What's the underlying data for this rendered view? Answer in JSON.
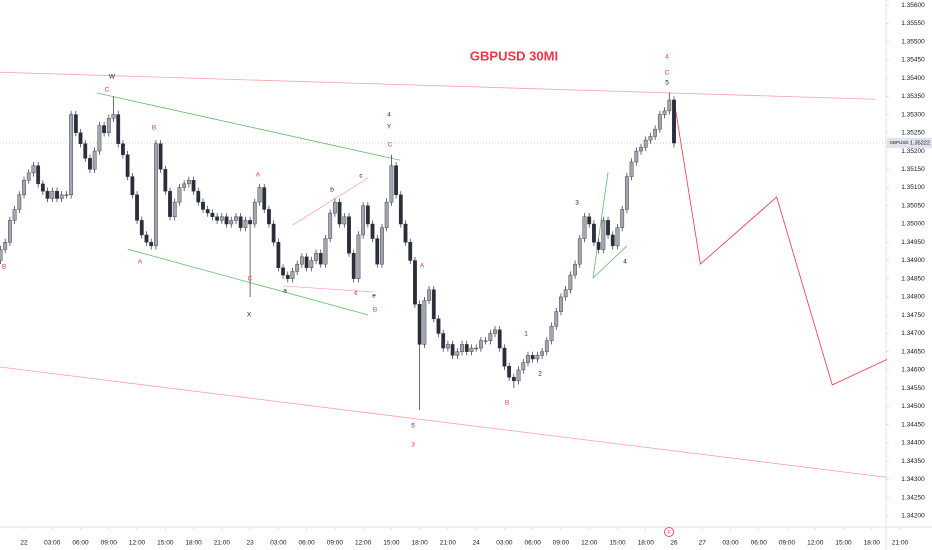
{
  "chart_data": {
    "type": "candlestick",
    "title": "GBPUSD 30MI",
    "symbol": "GBPUSD",
    "up_color": "#a3a6ae",
    "down_color": "#2a2e39",
    "grid": false,
    "x": [
      -2.5,
      -2,
      -1.5,
      -1,
      -0.5,
      0,
      0.5,
      1,
      1.5,
      2,
      2.5,
      3,
      3.5,
      4,
      4.5,
      5,
      5.5,
      6,
      6.5,
      7,
      7.5,
      8,
      8.5,
      9,
      9.5,
      10,
      10.5,
      11,
      11.5,
      12,
      12.5,
      13,
      13.5,
      14,
      14.5,
      15,
      15.5,
      16,
      16.5,
      17,
      17.5,
      18,
      18.5,
      19,
      19.5,
      20,
      20.5,
      21,
      21.5,
      22,
      22.5,
      23,
      23.5,
      24,
      24.5,
      25,
      25.5,
      26,
      26.5,
      27,
      27.5,
      28,
      28.5,
      29,
      29.5,
      30,
      30.5,
      31,
      31.5,
      32,
      32.5,
      33,
      33.5,
      34,
      34.5,
      35,
      35.5,
      36,
      36.5,
      37,
      37.5,
      38,
      38.5,
      39,
      39.5,
      40,
      40.5,
      41,
      41.5,
      42,
      42.5,
      43,
      43.5,
      44,
      44.5,
      45,
      45.5,
      46,
      46.5,
      47,
      47.5,
      48,
      48.5,
      49,
      49.5,
      50,
      50.5,
      51,
      51.5,
      52,
      52.5,
      53,
      53.5,
      54,
      54.5,
      55,
      55.5,
      56,
      56.5,
      57,
      57.5,
      58,
      58.5,
      59,
      59.5,
      60,
      60.5,
      61,
      61.5,
      62,
      62.5,
      63,
      63.5,
      64,
      64.5,
      65,
      65.5,
      66,
      66.5,
      67,
      67.5,
      68,
      68.5,
      69
    ],
    "open": [
      1.349,
      1.3493,
      1.3495,
      1.3501,
      1.3504,
      1.3508,
      1.3512,
      1.3514,
      1.3516,
      1.3511,
      1.3509,
      1.3507,
      1.3509,
      1.3507,
      1.3508,
      1.3508,
      1.353,
      1.3525,
      1.3522,
      1.3518,
      1.3515,
      1.352,
      1.3527,
      1.3525,
      1.3529,
      1.353,
      1.3522,
      1.3519,
      1.3513,
      1.3508,
      1.3501,
      1.3497,
      1.3495,
      1.3494,
      1.3522,
      1.3515,
      1.3509,
      1.3502,
      1.3506,
      1.351,
      1.3511,
      1.3512,
      1.3509,
      1.3506,
      1.3504,
      1.3503,
      1.3502,
      1.3501,
      1.3502,
      1.35,
      1.3501,
      1.3502,
      1.3499,
      1.3501,
      1.35,
      1.3506,
      1.351,
      1.3504,
      1.35,
      1.3495,
      1.3488,
      1.3486,
      1.3485,
      1.3487,
      1.3489,
      1.3491,
      1.3488,
      1.349,
      1.3492,
      1.3489,
      1.3496,
      1.3503,
      1.3506,
      1.35,
      1.3502,
      1.3492,
      1.3485,
      1.3497,
      1.3505,
      1.35,
      1.3496,
      1.3489,
      1.3499,
      1.3506,
      1.3516,
      1.3508,
      1.35,
      1.3495,
      1.349,
      1.3478,
      1.3467,
      1.3479,
      1.3482,
      1.3474,
      1.347,
      1.3466,
      1.3467,
      1.3464,
      1.3465,
      1.3467,
      1.3465,
      1.3466,
      1.3466,
      1.3468,
      1.3468,
      1.347,
      1.3471,
      1.3466,
      1.3461,
      1.3458,
      1.3457,
      1.346,
      1.3462,
      1.3464,
      1.3463,
      1.3464,
      1.3465,
      1.3468,
      1.3472,
      1.3476,
      1.348,
      1.3482,
      1.3486,
      1.3489,
      1.3496,
      1.3502,
      1.35,
      1.3495,
      1.3493,
      1.3501,
      1.3497,
      1.3494,
      1.3499,
      1.3504,
      1.3513,
      1.3517,
      1.352,
      1.3521,
      1.3523,
      1.3524,
      1.3526,
      1.353,
      1.3531,
      1.3534
    ],
    "high": [
      1.3494,
      1.3496,
      1.3502,
      1.3505,
      1.3509,
      1.3513,
      1.3515,
      1.3517,
      1.3517,
      1.3512,
      1.351,
      1.351,
      1.351,
      1.3509,
      1.3509,
      1.3531,
      1.3531,
      1.3526,
      1.3523,
      1.3519,
      1.3521,
      1.3528,
      1.3528,
      1.353,
      1.3535,
      1.3531,
      1.3523,
      1.352,
      1.3514,
      1.3509,
      1.3502,
      1.3498,
      1.3496,
      1.3523,
      1.3523,
      1.3516,
      1.351,
      1.3507,
      1.3511,
      1.3512,
      1.3513,
      1.3513,
      1.351,
      1.3507,
      1.3505,
      1.3504,
      1.3503,
      1.3503,
      1.3503,
      1.3502,
      1.3503,
      1.3503,
      1.3502,
      1.3502,
      1.3507,
      1.3511,
      1.3511,
      1.3505,
      1.3501,
      1.3496,
      1.3489,
      1.3487,
      1.3488,
      1.349,
      1.3492,
      1.3492,
      1.3491,
      1.3493,
      1.3493,
      1.3497,
      1.3504,
      1.3507,
      1.3507,
      1.3503,
      1.3503,
      1.3493,
      1.3498,
      1.3506,
      1.3506,
      1.3501,
      1.3497,
      1.35,
      1.3507,
      1.3519,
      1.3517,
      1.3509,
      1.3501,
      1.3496,
      1.3491,
      1.3479,
      1.348,
      1.3483,
      1.3483,
      1.3475,
      1.3471,
      1.3468,
      1.3468,
      1.3466,
      1.3468,
      1.3468,
      1.3467,
      1.3467,
      1.3469,
      1.3469,
      1.3471,
      1.3472,
      1.3472,
      1.3467,
      1.3462,
      1.3459,
      1.3461,
      1.3463,
      1.3465,
      1.3465,
      1.3465,
      1.3466,
      1.3469,
      1.3473,
      1.3477,
      1.3481,
      1.3483,
      1.3487,
      1.349,
      1.3497,
      1.3503,
      1.3503,
      1.3501,
      1.3496,
      1.3502,
      1.3502,
      1.3498,
      1.35,
      1.3505,
      1.3514,
      1.3518,
      1.3521,
      1.3522,
      1.3524,
      1.3525,
      1.3527,
      1.3531,
      1.3532,
      1.3536,
      1.3535
    ],
    "low": [
      1.3489,
      1.3492,
      1.3494,
      1.35,
      1.3503,
      1.3507,
      1.3511,
      1.3513,
      1.351,
      1.3508,
      1.3506,
      1.3506,
      1.3506,
      1.3506,
      1.3507,
      1.3507,
      1.3524,
      1.3521,
      1.3517,
      1.3514,
      1.3514,
      1.3519,
      1.3524,
      1.3524,
      1.3528,
      1.3521,
      1.3518,
      1.3512,
      1.3507,
      1.35,
      1.3496,
      1.3494,
      1.3493,
      1.3493,
      1.3514,
      1.3508,
      1.3501,
      1.3501,
      1.3505,
      1.3509,
      1.351,
      1.3508,
      1.3505,
      1.3503,
      1.3502,
      1.3501,
      1.35,
      1.35,
      1.3499,
      1.3499,
      1.35,
      1.3498,
      1.3498,
      1.348,
      1.3499,
      1.3505,
      1.3503,
      1.3499,
      1.3494,
      1.3487,
      1.3485,
      1.3484,
      1.3484,
      1.3486,
      1.3488,
      1.3487,
      1.3487,
      1.3489,
      1.3488,
      1.3488,
      1.3495,
      1.3502,
      1.3499,
      1.3499,
      1.3491,
      1.3484,
      1.3484,
      1.3496,
      1.3499,
      1.3495,
      1.3488,
      1.3488,
      1.3498,
      1.3505,
      1.3507,
      1.3499,
      1.3494,
      1.3489,
      1.3477,
      1.3449,
      1.3466,
      1.3478,
      1.3473,
      1.3469,
      1.3465,
      1.3465,
      1.3463,
      1.3463,
      1.3464,
      1.3464,
      1.3464,
      1.3465,
      1.3465,
      1.3467,
      1.3467,
      1.3469,
      1.3465,
      1.346,
      1.3457,
      1.3455,
      1.3456,
      1.3459,
      1.3461,
      1.3462,
      1.3462,
      1.3463,
      1.3464,
      1.3467,
      1.3471,
      1.3475,
      1.3479,
      1.3481,
      1.3485,
      1.3488,
      1.3495,
      1.3499,
      1.3494,
      1.3492,
      1.3492,
      1.3496,
      1.3493,
      1.3493,
      1.3498,
      1.3503,
      1.3512,
      1.3516,
      1.3519,
      1.352,
      1.3522,
      1.3523,
      1.3525,
      1.3529,
      1.353,
      1.3521
    ],
    "close": [
      1.3493,
      1.3495,
      1.3501,
      1.3504,
      1.3508,
      1.3512,
      1.3514,
      1.3516,
      1.3511,
      1.3509,
      1.3507,
      1.3509,
      1.3507,
      1.3508,
      1.3508,
      1.353,
      1.3525,
      1.3522,
      1.3518,
      1.3515,
      1.352,
      1.3527,
      1.3525,
      1.3529,
      1.353,
      1.3522,
      1.3519,
      1.3513,
      1.3508,
      1.3501,
      1.3497,
      1.3495,
      1.3494,
      1.3522,
      1.3515,
      1.3509,
      1.3502,
      1.3506,
      1.351,
      1.3511,
      1.3512,
      1.3509,
      1.3506,
      1.3504,
      1.3503,
      1.3502,
      1.3501,
      1.3502,
      1.35,
      1.3501,
      1.3502,
      1.3499,
      1.3501,
      1.35,
      1.3506,
      1.351,
      1.3504,
      1.35,
      1.3495,
      1.3488,
      1.3486,
      1.3485,
      1.3487,
      1.3489,
      1.3491,
      1.3488,
      1.349,
      1.3492,
      1.3489,
      1.3496,
      1.3503,
      1.3506,
      1.35,
      1.3502,
      1.3492,
      1.3485,
      1.3497,
      1.3505,
      1.35,
      1.3496,
      1.3489,
      1.3499,
      1.3506,
      1.3516,
      1.3508,
      1.35,
      1.3495,
      1.349,
      1.3478,
      1.3467,
      1.3479,
      1.3482,
      1.3474,
      1.347,
      1.3466,
      1.3467,
      1.3464,
      1.3465,
      1.3467,
      1.3465,
      1.3466,
      1.3466,
      1.3468,
      1.3468,
      1.347,
      1.3471,
      1.3466,
      1.3461,
      1.3458,
      1.3457,
      1.346,
      1.3462,
      1.3464,
      1.3463,
      1.3464,
      1.3465,
      1.3468,
      1.3472,
      1.3476,
      1.348,
      1.3482,
      1.3486,
      1.3489,
      1.3496,
      1.3502,
      1.35,
      1.3495,
      1.3493,
      1.3501,
      1.3497,
      1.3494,
      1.3499,
      1.3504,
      1.3513,
      1.3517,
      1.352,
      1.3521,
      1.3523,
      1.3524,
      1.3526,
      1.353,
      1.3531,
      1.3534,
      1.35222
    ],
    "xlim": [
      -2.55,
      96.39
    ],
    "xticks": [
      {
        "value": 0,
        "label": "22"
      },
      {
        "value": 3,
        "label": "03:00"
      },
      {
        "value": 6,
        "label": "06:00"
      },
      {
        "value": 9,
        "label": "09:00"
      },
      {
        "value": 12,
        "label": "12:00"
      },
      {
        "value": 15,
        "label": "15:00"
      },
      {
        "value": 18,
        "label": "18:00"
      },
      {
        "value": 21,
        "label": "21:00"
      },
      {
        "value": 24,
        "label": "23"
      },
      {
        "value": 27,
        "label": "03:00"
      },
      {
        "value": 30,
        "label": "06:00"
      },
      {
        "value": 33,
        "label": "09:00"
      },
      {
        "value": 36,
        "label": "12:00"
      },
      {
        "value": 39,
        "label": "15:00"
      },
      {
        "value": 42,
        "label": "18:00"
      },
      {
        "value": 45,
        "label": "21:00"
      },
      {
        "value": 48,
        "label": "24"
      },
      {
        "value": 51,
        "label": "03:00"
      },
      {
        "value": 54,
        "label": "06:00"
      },
      {
        "value": 57,
        "label": "09:00"
      },
      {
        "value": 60,
        "label": "12:00"
      },
      {
        "value": 63,
        "label": "15:00"
      },
      {
        "value": 66,
        "label": "18:00"
      },
      {
        "value": 69,
        "label": "26"
      },
      {
        "value": 72,
        "label": "27"
      },
      {
        "value": 75,
        "label": "03:00"
      },
      {
        "value": 78,
        "label": "06:00"
      },
      {
        "value": 81,
        "label": "09:00"
      },
      {
        "value": 84,
        "label": "12:00"
      },
      {
        "value": 87,
        "label": "15:00"
      },
      {
        "value": 90,
        "label": "18:00"
      },
      {
        "value": 93,
        "label": "21:00"
      }
    ],
    "ylim": [
      1.34175,
      1.35614
    ],
    "yticks": [
      {
        "value": 1.356,
        "label": "1.35600"
      },
      {
        "value": 1.3555,
        "label": "1.35550"
      },
      {
        "value": 1.355,
        "label": "1.35500"
      },
      {
        "value": 1.3545,
        "label": "1.35450"
      },
      {
        "value": 1.354,
        "label": "1.35400"
      },
      {
        "value": 1.3535,
        "label": "1.35350"
      },
      {
        "value": 1.353,
        "label": "1.35300"
      },
      {
        "value": 1.3525,
        "label": "1.35250"
      },
      {
        "value": 1.352,
        "label": "1.35200"
      },
      {
        "value": 1.3515,
        "label": "1.35150"
      },
      {
        "value": 1.351,
        "label": "1.35100"
      },
      {
        "value": 1.3505,
        "label": "1.35050"
      },
      {
        "value": 1.35,
        "label": "1.35000"
      },
      {
        "value": 1.3495,
        "label": "1.34950"
      },
      {
        "value": 1.349,
        "label": "1.34900"
      },
      {
        "value": 1.3485,
        "label": "1.34850"
      },
      {
        "value": 1.348,
        "label": "1.34800"
      },
      {
        "value": 1.3475,
        "label": "1.34750"
      },
      {
        "value": 1.347,
        "label": "1.34700"
      },
      {
        "value": 1.3465,
        "label": "1.34650"
      },
      {
        "value": 1.346,
        "label": "1.34600"
      },
      {
        "value": 1.3455,
        "label": "1.34550"
      },
      {
        "value": 1.345,
        "label": "1.34500"
      },
      {
        "value": 1.3445,
        "label": "1.34450"
      },
      {
        "value": 1.344,
        "label": "1.34400"
      },
      {
        "value": 1.3435,
        "label": "1.34350"
      },
      {
        "value": 1.343,
        "label": "1.34300"
      },
      {
        "value": 1.3425,
        "label": "1.34250"
      },
      {
        "value": 1.342,
        "label": "1.34200"
      }
    ],
    "trend_lines": [
      {
        "color": "#f7a1a8",
        "x": [
          -2.55,
          90.3
        ],
        "y": [
          1.35416,
          1.35342
        ]
      },
      {
        "color": "#f7a1a8",
        "x": [
          -2.55,
          93.8
        ],
        "y": [
          1.34608,
          1.342985
        ]
      },
      {
        "color": "#66bb6a",
        "x": [
          7.75,
          39.9
        ],
        "y": [
          1.35359,
          1.35175
        ]
      },
      {
        "color": "#66bb6a",
        "x": [
          11.0,
          36.5
        ],
        "y": [
          1.34931,
          1.34751
        ]
      },
      {
        "color": "#66bb6a",
        "x": [
          60.4,
          62.0
        ],
        "y": [
          1.34852,
          1.35142
        ]
      },
      {
        "color": "#66bb6a",
        "x": [
          60.4,
          64.0
        ],
        "y": [
          1.34852,
          1.3494
        ]
      },
      {
        "color": "#f9a8c0",
        "x": [
          28.5,
          36.5
        ],
        "y": [
          1.34997,
          1.35126
        ]
      },
      {
        "color": "#f9a8c0",
        "x": [
          27.5,
          37.0
        ],
        "y": [
          1.3483,
          1.34814
        ]
      },
      {
        "color": "#f23645",
        "x": [
          69,
          71.8,
          79.9,
          85.8,
          93.3,
          93.8
        ],
        "y": [
          1.3534,
          1.3489,
          1.35074,
          1.34559,
          1.34649,
          1.34594
        ]
      }
    ],
    "wave_labels": [
      {
        "text": "B",
        "color": "#f23645"
      },
      {
        "text": "C",
        "color": "#f23645"
      },
      {
        "text": "W",
        "color": "#131722"
      },
      {
        "text": "B",
        "color": "#f23645"
      },
      {
        "text": "A",
        "color": "#f23645"
      },
      {
        "text": "A",
        "color": "#f23645"
      },
      {
        "text": "C",
        "color": "#f23645"
      },
      {
        "text": "X",
        "color": "#131722"
      },
      {
        "text": "4",
        "color": "#1e3a8a"
      },
      {
        "text": "Y",
        "color": "#1e3a8a"
      },
      {
        "text": "C",
        "color": "#f23645"
      },
      {
        "text": "B",
        "color": "#f23645"
      },
      {
        "text": "A",
        "color": "#f23645"
      },
      {
        "text": "5",
        "color": "#1e3a8a"
      },
      {
        "text": "3",
        "color": "#f23645"
      },
      {
        "text": "1",
        "color": "#1e3a8a"
      },
      {
        "text": "2",
        "color": "#131722"
      },
      {
        "text": "B",
        "color": "#f23645"
      },
      {
        "text": "3",
        "color": "#131722"
      },
      {
        "text": "4",
        "color": "#131722"
      },
      {
        "text": "4",
        "color": "#f23645"
      },
      {
        "text": "C",
        "color": "#f23645"
      },
      {
        "text": "5",
        "color": "#131722"
      },
      {
        "text": "a",
        "color": "#131722"
      },
      {
        "text": "b",
        "color": "#131722"
      },
      {
        "text": "c",
        "color": "#131722"
      },
      {
        "text": "c",
        "color": "#131722"
      },
      {
        "text": "e",
        "color": "#131722"
      }
    ]
  }
}
